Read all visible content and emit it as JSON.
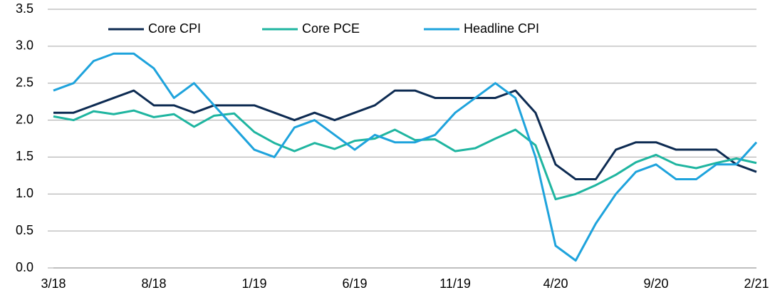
{
  "chart_data": {
    "type": "line",
    "categories": [
      "3/18",
      null,
      null,
      null,
      null,
      "8/18",
      null,
      null,
      null,
      null,
      "1/19",
      null,
      null,
      null,
      null,
      "6/19",
      null,
      null,
      null,
      null,
      "11/19",
      null,
      null,
      null,
      null,
      "4/20",
      null,
      null,
      null,
      null,
      "9/20",
      null,
      null,
      null,
      null,
      "2/21"
    ],
    "series": [
      {
        "name": "Core CPI",
        "color": "#0d2b52",
        "values": [
          2.1,
          2.1,
          2.2,
          2.3,
          2.4,
          2.2,
          2.2,
          2.1,
          2.2,
          2.2,
          2.2,
          2.1,
          2.0,
          2.1,
          2.0,
          2.1,
          2.2,
          2.4,
          2.4,
          2.3,
          2.3,
          2.3,
          2.3,
          2.4,
          2.1,
          1.4,
          1.2,
          1.2,
          1.6,
          1.7,
          1.7,
          1.6,
          1.6,
          1.6,
          1.4,
          1.3
        ]
      },
      {
        "name": "Core PCE",
        "color": "#1fb5a0",
        "values": [
          2.05,
          2.0,
          2.12,
          2.08,
          2.13,
          2.04,
          2.08,
          1.91,
          2.06,
          2.09,
          1.84,
          1.69,
          1.58,
          1.69,
          1.61,
          1.72,
          1.75,
          1.87,
          1.73,
          1.74,
          1.58,
          1.62,
          1.75,
          1.87,
          1.66,
          0.93,
          1.0,
          1.12,
          1.26,
          1.43,
          1.53,
          1.4,
          1.35,
          1.42,
          1.48,
          1.42
        ]
      },
      {
        "name": "Headline CPI",
        "color": "#1ea3dc",
        "values": [
          2.4,
          2.5,
          2.8,
          2.9,
          2.9,
          2.7,
          2.3,
          2.5,
          2.2,
          1.9,
          1.6,
          1.5,
          1.9,
          2.0,
          1.8,
          1.6,
          1.8,
          1.7,
          1.7,
          1.8,
          2.1,
          2.3,
          2.5,
          2.3,
          1.5,
          0.3,
          0.1,
          0.6,
          1.0,
          1.3,
          1.4,
          1.2,
          1.2,
          1.4,
          1.4,
          1.7
        ]
      }
    ],
    "ylim": [
      0,
      3.5
    ],
    "yticks": [
      {
        "value": 0,
        "label": "0.0"
      },
      0.5,
      {
        "value": 1,
        "label": "1.0"
      },
      1.5,
      {
        "value": 2,
        "label": "2.0"
      },
      2.5,
      {
        "value": 3,
        "label": "3.0"
      },
      3.5
    ],
    "grid": true,
    "legend": "top"
  }
}
